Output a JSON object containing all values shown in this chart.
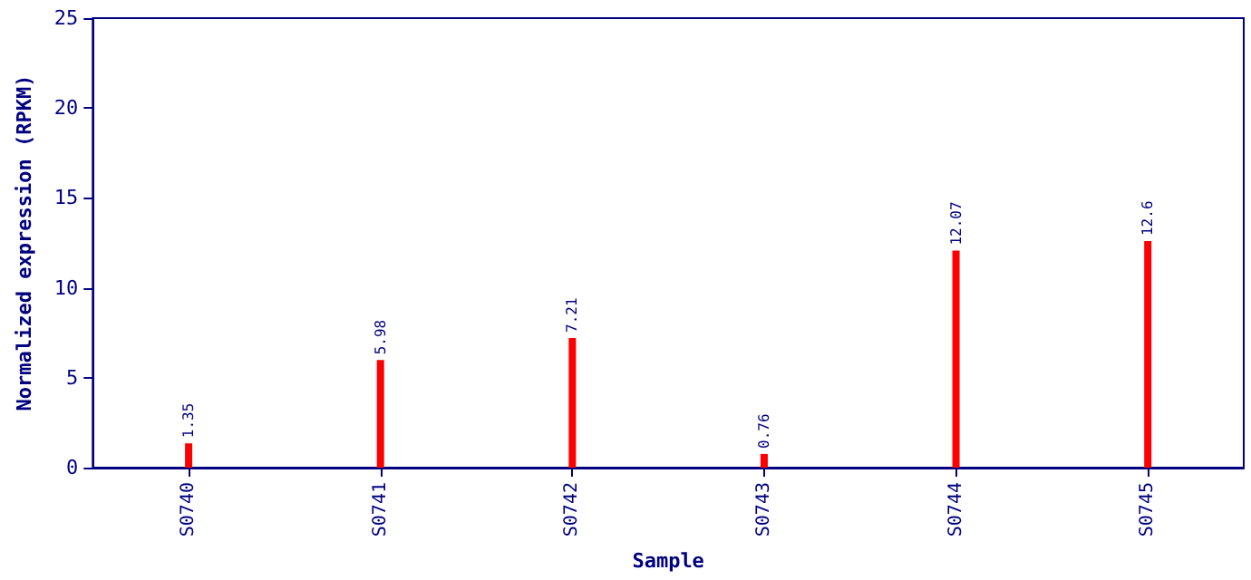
{
  "chart_data": {
    "type": "bar",
    "xlabel": "Sample",
    "ylabel": "Normalized expression (RPKM)",
    "categories": [
      "S0740",
      "S0741",
      "S0742",
      "S0743",
      "S0744",
      "S0745"
    ],
    "values": [
      1.35,
      5.98,
      7.21,
      0.76,
      12.07,
      12.6
    ],
    "color": "#ff0000",
    "ylim": [
      0,
      25
    ],
    "yticks": [
      0,
      5,
      10,
      15,
      20,
      25
    ],
    "data_labels": true,
    "grid": false
  }
}
